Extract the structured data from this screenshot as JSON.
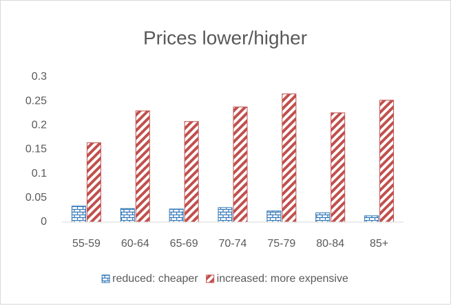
{
  "chart_data": {
    "type": "bar",
    "title": "Prices lower/higher",
    "categories": [
      "55-59",
      "60-64",
      "65-69",
      "70-74",
      "75-79",
      "80-84",
      "85+"
    ],
    "series": [
      {
        "name": "reduced: cheaper",
        "color": "#2e75b6",
        "values": [
          0.033,
          0.028,
          0.027,
          0.03,
          0.023,
          0.019,
          0.013
        ]
      },
      {
        "name": "increased: more expensive",
        "color": "#c0504d",
        "values": [
          0.164,
          0.23,
          0.208,
          0.238,
          0.265,
          0.226,
          0.252
        ]
      }
    ],
    "ylim": [
      0,
      0.3
    ],
    "yticks": [
      0,
      0.05,
      0.1,
      0.15,
      0.2,
      0.25,
      0.3
    ],
    "grid": false,
    "legend": "bottom"
  }
}
